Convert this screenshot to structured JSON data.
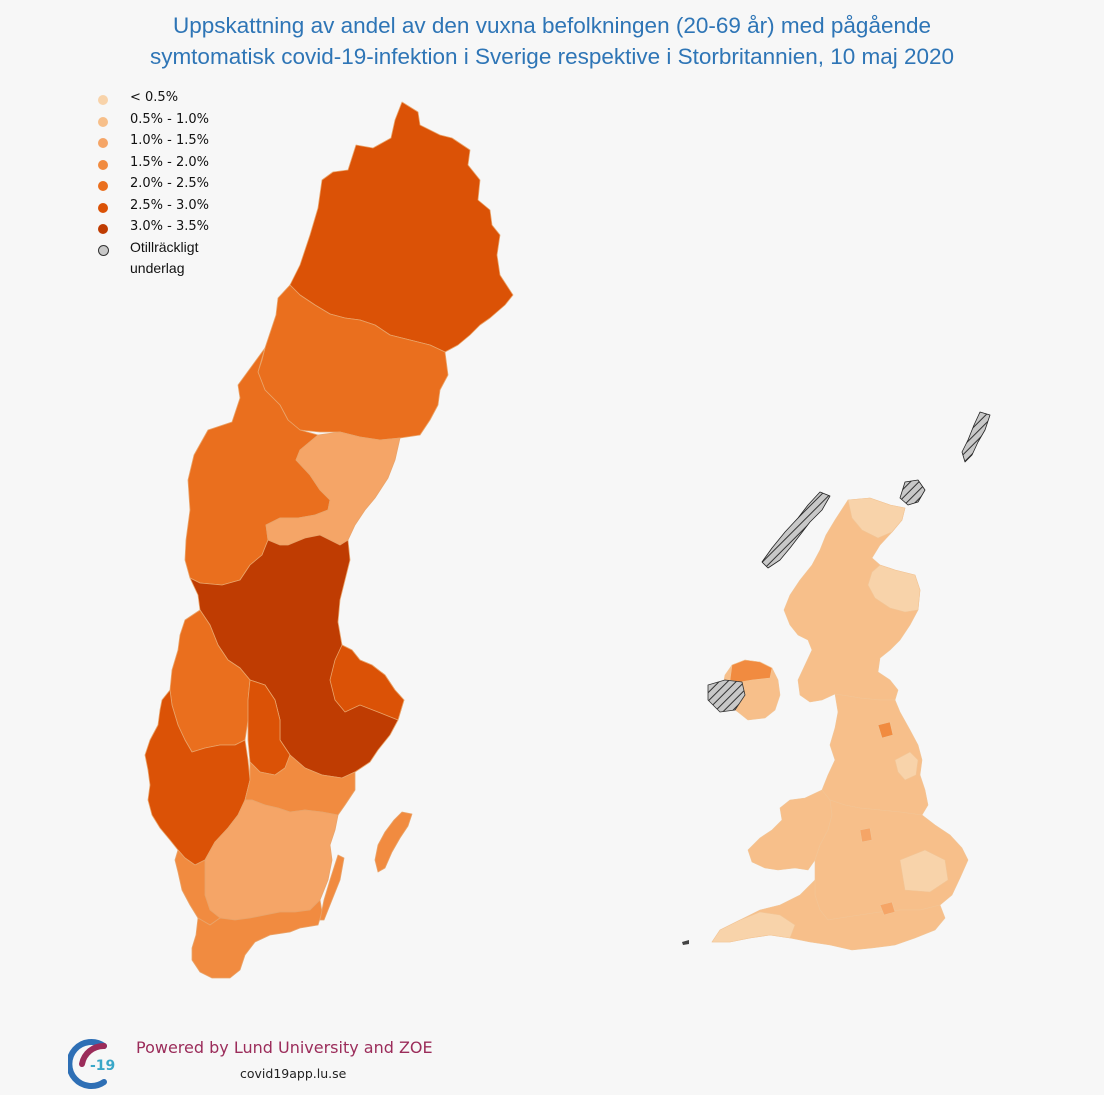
{
  "title": {
    "line1": "Uppskattning av andel av den vuxna befolkningen (20-69 år) med pågående",
    "line2": "symtomatisk covid-19-infektion i Sverige respektive i Storbritannien, 10 maj 2020"
  },
  "legend": {
    "items": [
      {
        "label": "< 0.5%",
        "color": "#f8d3aa"
      },
      {
        "label": "0.5% - 1.0%",
        "color": "#f7bf8a"
      },
      {
        "label": "1.0% - 1.5%",
        "color": "#f5a567"
      },
      {
        "label": "1.5% - 2.0%",
        "color": "#f18b40"
      },
      {
        "label": "2.0% - 2.5%",
        "color": "#ea6f1e"
      },
      {
        "label": "2.5% - 3.0%",
        "color": "#db5206"
      },
      {
        "label": "3.0% - 3.5%",
        "color": "#bf3c02"
      }
    ],
    "insufficient_label": "Otillräckligt underlag",
    "insufficient_color": "#c8c8c8"
  },
  "footer": {
    "logo_text": "-19",
    "powered_by": "Powered by Lund University and ZOE",
    "website": "covid19app.lu.se"
  }
}
